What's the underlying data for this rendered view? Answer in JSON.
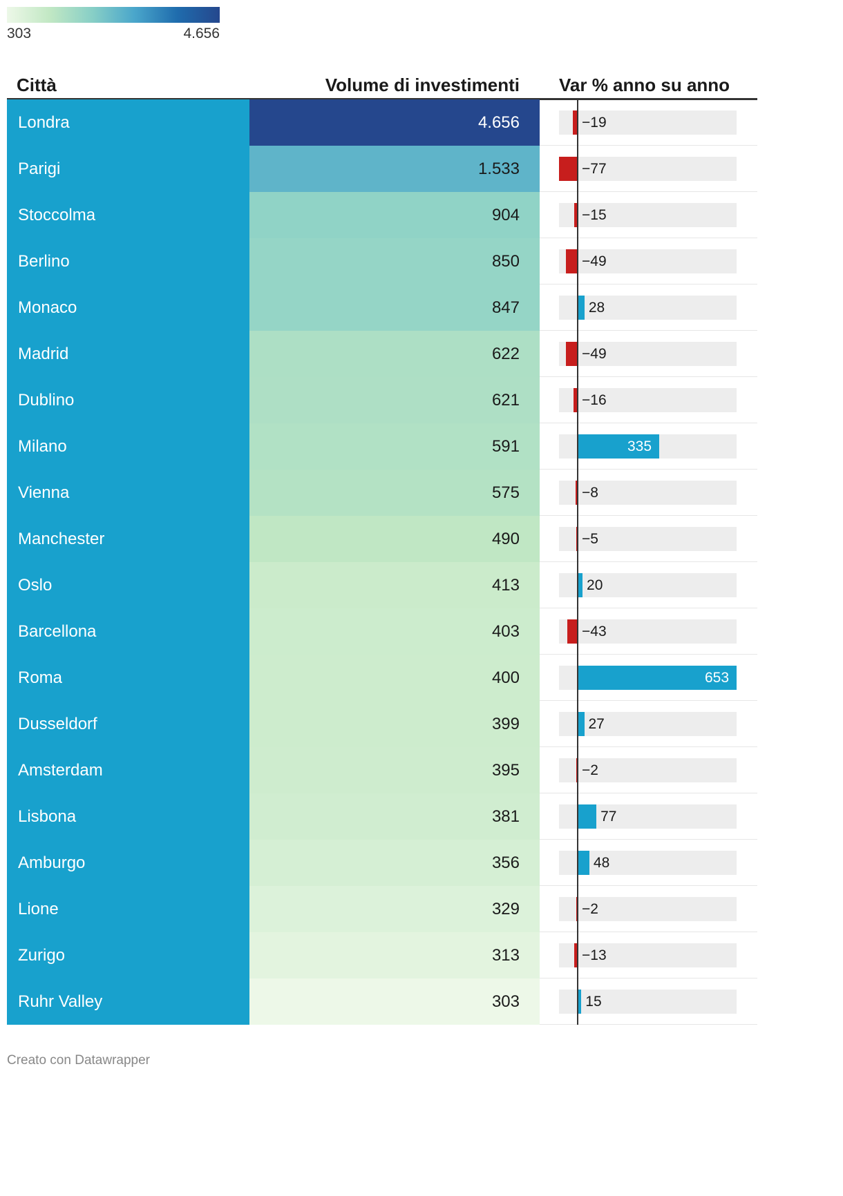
{
  "legend": {
    "min_label": "303",
    "max_label": "4.656",
    "gradient_colors": [
      "#edf8e8",
      "#c2e8c4",
      "#88cfc6",
      "#4aa6cb",
      "#1f6cad",
      "#25478d"
    ]
  },
  "header": {
    "city": "Città",
    "volume": "Volume di investimenti",
    "var": "Var % anno su anno"
  },
  "colors": {
    "city_bg": "#18a1cd",
    "positive": "#18a1cd",
    "negative": "#c71e1d",
    "bar_track": "#ededed",
    "axis": "#333333"
  },
  "chart_data": {
    "type": "table",
    "columns": [
      "Città",
      "Volume di investimenti",
      "Var % anno su anno"
    ],
    "volume_range": [
      303,
      4656
    ],
    "var_range": [
      -100,
      653
    ],
    "rows": [
      {
        "city": "Londra",
        "volume": 4656,
        "volume_label": "4.656",
        "var": -19,
        "var_label": "−19"
      },
      {
        "city": "Parigi",
        "volume": 1533,
        "volume_label": "1.533",
        "var": -77,
        "var_label": "−77"
      },
      {
        "city": "Stoccolma",
        "volume": 904,
        "volume_label": "904",
        "var": -15,
        "var_label": "−15"
      },
      {
        "city": "Berlino",
        "volume": 850,
        "volume_label": "850",
        "var": -49,
        "var_label": "−49"
      },
      {
        "city": "Monaco",
        "volume": 847,
        "volume_label": "847",
        "var": 28,
        "var_label": "28"
      },
      {
        "city": "Madrid",
        "volume": 622,
        "volume_label": "622",
        "var": -49,
        "var_label": "−49"
      },
      {
        "city": "Dublino",
        "volume": 621,
        "volume_label": "621",
        "var": -16,
        "var_label": "−16"
      },
      {
        "city": "Milano",
        "volume": 591,
        "volume_label": "591",
        "var": 335,
        "var_label": "335"
      },
      {
        "city": "Vienna",
        "volume": 575,
        "volume_label": "575",
        "var": -8,
        "var_label": "−8"
      },
      {
        "city": "Manchester",
        "volume": 490,
        "volume_label": "490",
        "var": -5,
        "var_label": "−5"
      },
      {
        "city": "Oslo",
        "volume": 413,
        "volume_label": "413",
        "var": 20,
        "var_label": "20"
      },
      {
        "city": "Barcellona",
        "volume": 403,
        "volume_label": "403",
        "var": -43,
        "var_label": "−43"
      },
      {
        "city": "Roma",
        "volume": 400,
        "volume_label": "400",
        "var": 653,
        "var_label": "653"
      },
      {
        "city": "Dusseldorf",
        "volume": 399,
        "volume_label": "399",
        "var": 27,
        "var_label": "27"
      },
      {
        "city": "Amsterdam",
        "volume": 395,
        "volume_label": "395",
        "var": -2,
        "var_label": "−2"
      },
      {
        "city": "Lisbona",
        "volume": 381,
        "volume_label": "381",
        "var": 77,
        "var_label": "77"
      },
      {
        "city": "Amburgo",
        "volume": 356,
        "volume_label": "356",
        "var": 48,
        "var_label": "48"
      },
      {
        "city": "Lione",
        "volume": 329,
        "volume_label": "329",
        "var": -2,
        "var_label": "−2"
      },
      {
        "city": "Zurigo",
        "volume": 313,
        "volume_label": "313",
        "var": -13,
        "var_label": "−13"
      },
      {
        "city": "Ruhr Valley",
        "volume": 303,
        "volume_label": "303",
        "var": 15,
        "var_label": "15"
      }
    ]
  },
  "footer": {
    "credit": "Creato con Datawrapper"
  }
}
